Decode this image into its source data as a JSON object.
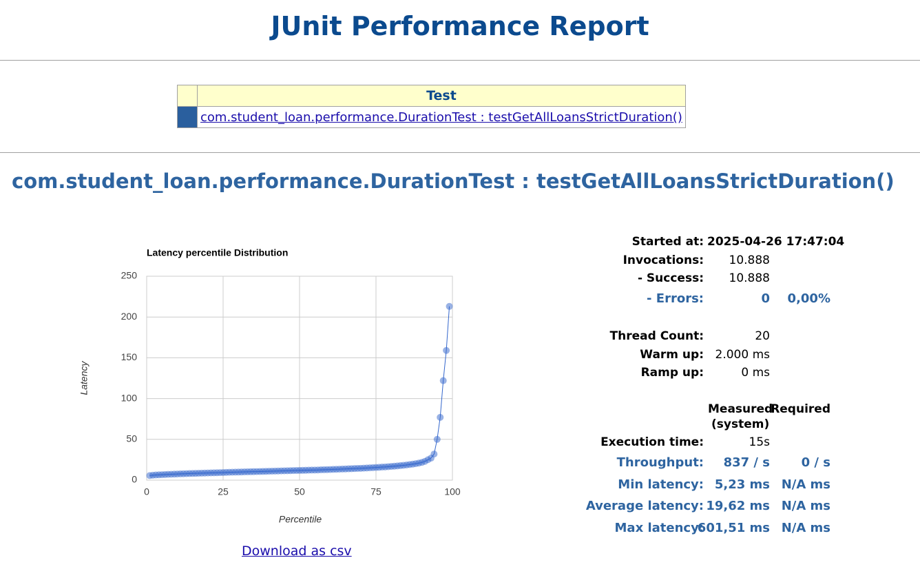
{
  "header": {
    "title": "JUnit Performance Report"
  },
  "test_table": {
    "header": "Test",
    "rows": [
      {
        "link": "com.student_loan.performance.DurationTest : testGetAllLoansStrictDuration()"
      }
    ]
  },
  "section": {
    "title": "com.student_loan.performance.DurationTest : testGetAllLoansStrictDuration()",
    "download_link": "Download as csv"
  },
  "chart_data": {
    "type": "line",
    "title": "Latency percentile Distribution",
    "x_label": "Percentile",
    "y_label": "Latency",
    "color": "#3366cc",
    "grid": true,
    "x": [
      1,
      2,
      3,
      4,
      5,
      6,
      7,
      8,
      9,
      10,
      11,
      12,
      13,
      14,
      15,
      16,
      17,
      18,
      19,
      20,
      21,
      22,
      23,
      24,
      25,
      26,
      27,
      28,
      29,
      30,
      31,
      32,
      33,
      34,
      35,
      36,
      37,
      38,
      39,
      40,
      41,
      42,
      43,
      44,
      45,
      46,
      47,
      48,
      49,
      50,
      51,
      52,
      53,
      54,
      55,
      56,
      57,
      58,
      59,
      60,
      61,
      62,
      63,
      64,
      65,
      66,
      67,
      68,
      69,
      70,
      71,
      72,
      73,
      74,
      75,
      76,
      77,
      78,
      79,
      80,
      81,
      82,
      83,
      84,
      85,
      86,
      87,
      88,
      89,
      90,
      91,
      92,
      93,
      94,
      95,
      96,
      97,
      98,
      99
    ],
    "values": [
      5.6,
      6,
      6.3,
      6.5,
      6.7,
      6.9,
      7.1,
      7.2,
      7.4,
      7.5,
      7.7,
      7.8,
      7.9,
      8.1,
      8.2,
      8.3,
      8.4,
      8.6,
      8.7,
      8.8,
      8.9,
      9,
      9.1,
      9.2,
      9.3,
      9.5,
      9.6,
      9.7,
      9.8,
      9.9,
      10,
      10.1,
      10.2,
      10.3,
      10.4,
      10.5,
      10.6,
      10.7,
      10.8,
      10.9,
      11,
      11.1,
      11.2,
      11.3,
      11.4,
      11.5,
      11.6,
      11.7,
      11.8,
      11.9,
      12,
      12.1,
      12.2,
      12.3,
      12.4,
      12.5,
      12.7,
      12.8,
      12.9,
      13,
      13.2,
      13.3,
      13.4,
      13.6,
      13.7,
      13.9,
      14,
      14.2,
      14.4,
      14.5,
      14.7,
      14.9,
      15.1,
      15.3,
      15.5,
      15.7,
      16,
      16.2,
      16.5,
      16.8,
      17.1,
      17.4,
      17.8,
      18.2,
      18.6,
      19.1,
      19.6,
      20.2,
      20.9,
      21.7,
      23,
      25,
      27,
      32,
      50,
      77,
      122,
      159,
      213
    ],
    "xlim": [
      0,
      100
    ],
    "xticks": [
      0,
      25,
      50,
      75,
      100
    ],
    "ylim": [
      0,
      250
    ],
    "yticks": [
      0,
      50,
      100,
      150,
      200,
      250
    ]
  },
  "stats": {
    "columns": {
      "measured": "Measured",
      "required": "Required",
      "system": "(system)"
    },
    "rows": [
      {
        "label": "Started at:",
        "values": [
          "2025-04-26 17:47:04"
        ]
      },
      {
        "label": "Invocations:",
        "values": [
          "10.888"
        ]
      },
      {
        "label": "- Success:",
        "values": [
          "10.888"
        ]
      },
      {
        "label": "- Errors:",
        "values": [
          "0",
          "0,00%"
        ],
        "highlight": true
      },
      {
        "label": "Thread Count:",
        "values": [
          "20"
        ]
      },
      {
        "label": "Warm up:",
        "values": [
          "2.000 ms"
        ]
      },
      {
        "label": "Ramp up:",
        "values": [
          "0 ms"
        ]
      },
      {
        "label": "Execution time:",
        "values": [
          "15s"
        ]
      },
      {
        "label": "Throughput:",
        "values": [
          "837 / s",
          "0 / s"
        ],
        "highlight": true
      },
      {
        "label": "Min latency:",
        "values": [
          "5,23 ms",
          "N/A ms"
        ],
        "highlight": true
      },
      {
        "label": "Average latency:",
        "values": [
          "19,62 ms",
          "N/A ms"
        ],
        "highlight": true
      },
      {
        "label": "Max latency:",
        "values": [
          "601,51 ms",
          "N/A ms"
        ],
        "highlight": true
      }
    ]
  }
}
